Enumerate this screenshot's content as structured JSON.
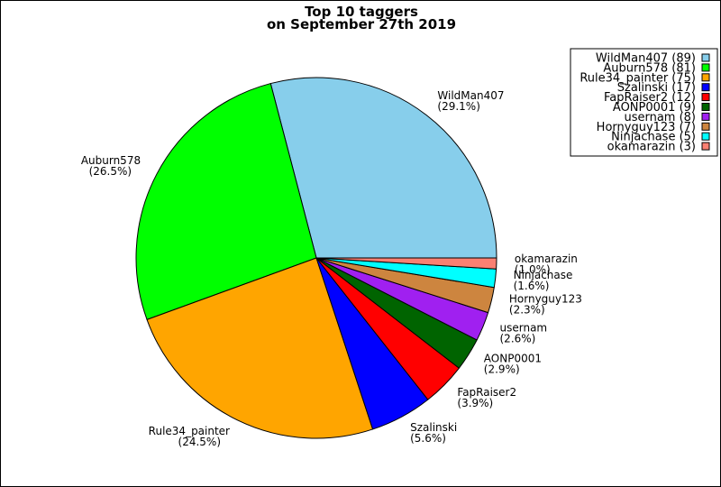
{
  "chart_data": {
    "type": "pie",
    "title": [
      "Top 10 taggers",
      "on September 27th 2019"
    ],
    "legend_position": "top-right",
    "slices": [
      {
        "name": "WildMan407",
        "value": 89,
        "percent": "(29.1%)",
        "legend": "WildMan407 (89)",
        "color": "#87ceeb"
      },
      {
        "name": "Auburn578",
        "value": 81,
        "percent": "(26.5%)",
        "legend": "Auburn578 (81)",
        "color": "#00ff00"
      },
      {
        "name": "Rule34_painter",
        "value": 75,
        "percent": "(24.5%)",
        "legend": "Rule34_painter (75)",
        "color": "#ffa500"
      },
      {
        "name": "Szalinski",
        "value": 17,
        "percent": "(5.6%)",
        "legend": "Szalinski (17)",
        "color": "#0000ff"
      },
      {
        "name": "FapRaiser2",
        "value": 12,
        "percent": "(3.9%)",
        "legend": "FapRaiser2 (12)",
        "color": "#ff0000"
      },
      {
        "name": "AONP0001",
        "value": 9,
        "percent": "(2.9%)",
        "legend": "AONP0001  (9)",
        "color": "#006400"
      },
      {
        "name": "usernam",
        "value": 8,
        "percent": "(2.6%)",
        "legend": "usernam (8)",
        "color": "#a020f0"
      },
      {
        "name": "Hornyguy123",
        "value": 7,
        "percent": "(2.3%)",
        "legend": "Hornyguy123 (7)",
        "color": "#cd853f"
      },
      {
        "name": "Ninjachase",
        "value": 5,
        "percent": "(1.6%)",
        "legend": "Ninjachase (5)",
        "color": "#00ffff"
      },
      {
        "name": "okamarazin",
        "value": 3,
        "percent": "(1.0%)",
        "legend": "okamarazin (3)",
        "color": "#fa8072"
      }
    ]
  }
}
